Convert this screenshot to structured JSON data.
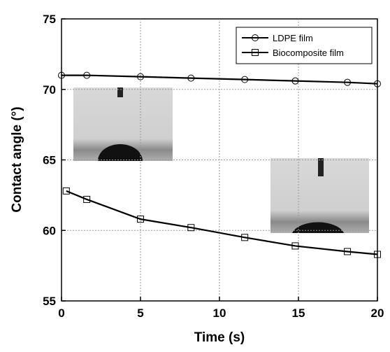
{
  "chart_data": {
    "type": "line",
    "x_label": "Time (s)",
    "y_label": "Contact angle (°)",
    "xlim": [
      0,
      20
    ],
    "xticks": [
      0,
      5,
      10,
      15,
      20
    ],
    "ylim": [
      55,
      75
    ],
    "yticks": [
      55,
      60,
      65,
      70,
      75
    ],
    "grid": true,
    "legend": "upper right",
    "series": [
      {
        "name": "LDPE film",
        "color": "#000000",
        "marker": "circle",
        "x": [
          0,
          1.6,
          5.0,
          8.2,
          11.6,
          14.8,
          18.1,
          20
        ],
        "values": [
          71.0,
          71.0,
          70.9,
          70.8,
          70.7,
          70.6,
          70.5,
          70.4
        ]
      },
      {
        "name": "Biocomposite film",
        "color": "#000000",
        "marker": "square",
        "x": [
          0.3,
          1.6,
          5.0,
          8.2,
          11.6,
          14.8,
          18.1,
          20
        ],
        "values": [
          62.8,
          62.2,
          60.8,
          60.2,
          59.5,
          58.9,
          58.5,
          58.3
        ]
      }
    ]
  }
}
